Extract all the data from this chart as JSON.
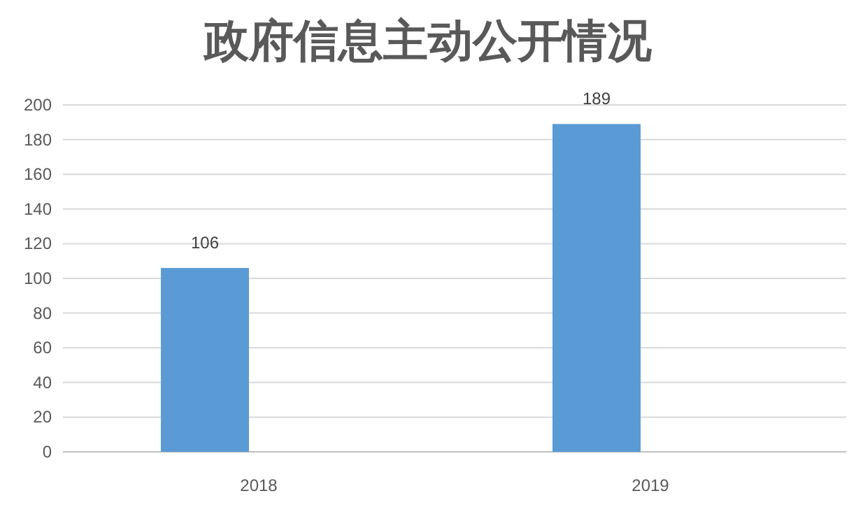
{
  "chart_data": {
    "type": "bar",
    "title": "政府信息主动公开情况",
    "categories": [
      "2018",
      "2019"
    ],
    "series": [
      {
        "color": "#5b9bd5",
        "values": [
          106,
          189
        ]
      }
    ],
    "ylim": [
      0,
      200
    ],
    "yticks": [
      0,
      20,
      40,
      60,
      80,
      100,
      120,
      140,
      160,
      180,
      200
    ],
    "grid": "y",
    "data_labels": true
  }
}
